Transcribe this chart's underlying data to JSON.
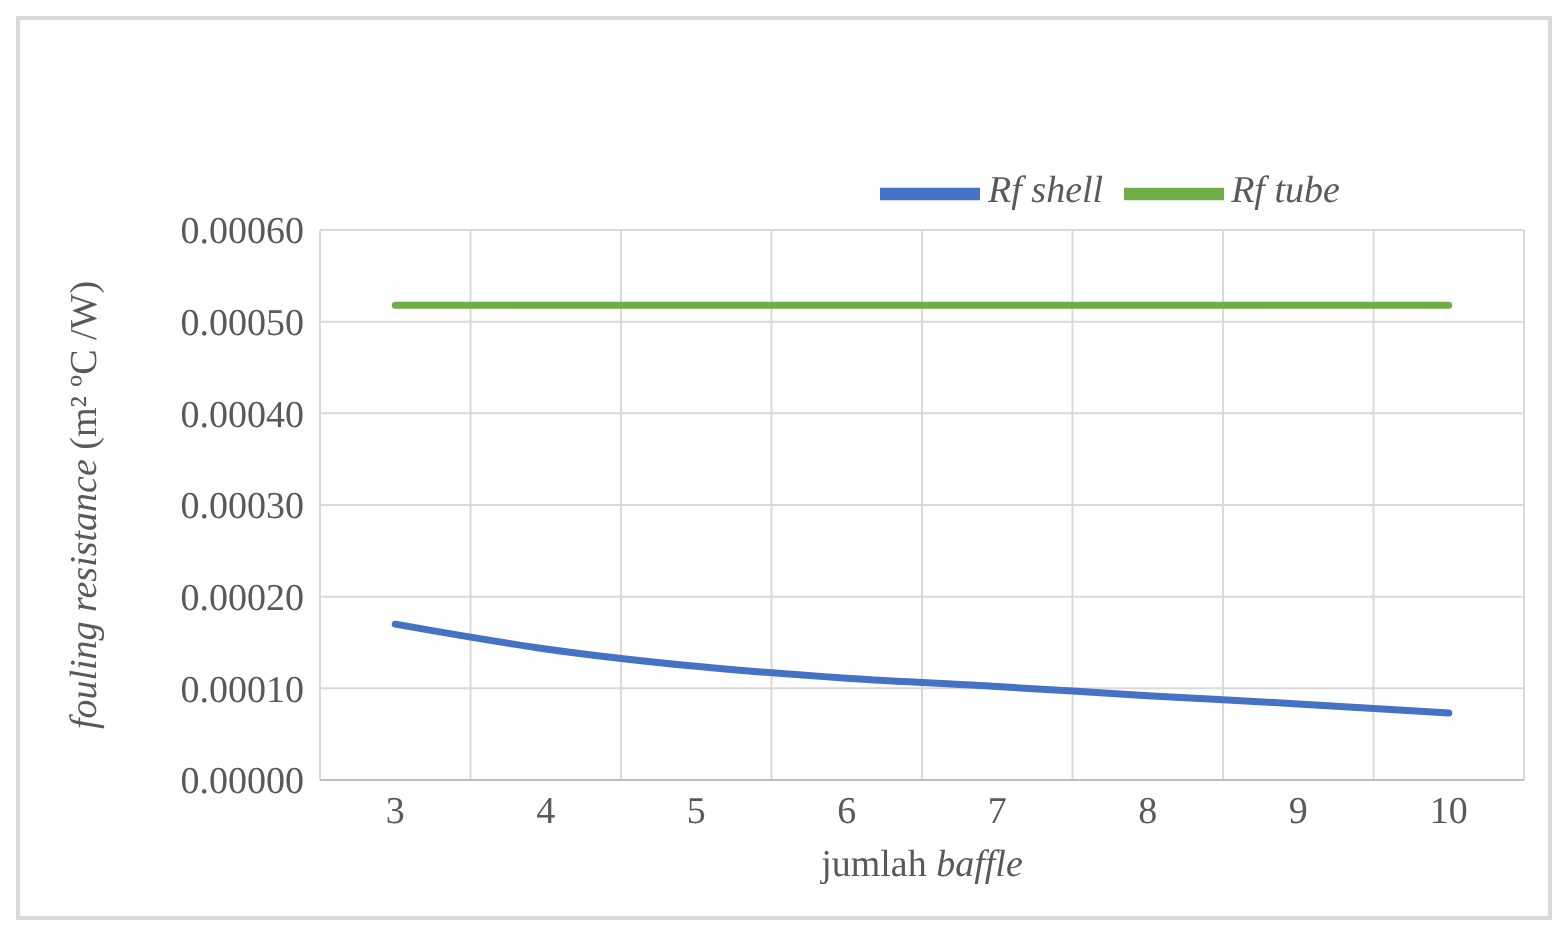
{
  "chart_data": {
    "type": "line",
    "ylabel": "fouling resistance (m² ºC /W)",
    "xlabel": "jumlah baffle",
    "categories": [
      "3",
      "4",
      "5",
      "6",
      "7",
      "8",
      "9",
      "10"
    ],
    "series": [
      {
        "name": "Rf tube",
        "color": "#70ad47",
        "values": [
          0.000518,
          0.000518,
          0.000518,
          0.000518,
          0.000518,
          0.000518,
          0.000518,
          0.000518
        ]
      },
      {
        "name": "Rf shell",
        "color": "#4472c4",
        "values": [
          0.00017,
          0.000143,
          0.000124,
          0.000111,
          0.000102,
          9.2e-05,
          8.3e-05,
          7.3e-05
        ]
      }
    ],
    "ylim": [
      0,
      0.0006
    ],
    "yticks": [
      {
        "value": 0,
        "label": "0.00000"
      },
      {
        "value": 0.0001,
        "label": "0.00010"
      },
      {
        "value": 0.0002,
        "label": "0.00020"
      },
      {
        "value": 0.0003,
        "label": "0.00030"
      },
      {
        "value": 0.0004,
        "label": "0.00040"
      },
      {
        "value": 0.0005,
        "label": "0.00050"
      },
      {
        "value": 0.0006,
        "label": "0.00060"
      }
    ],
    "grid": true,
    "legend": "top",
    "marker": "none",
    "line_style": "solid"
  }
}
